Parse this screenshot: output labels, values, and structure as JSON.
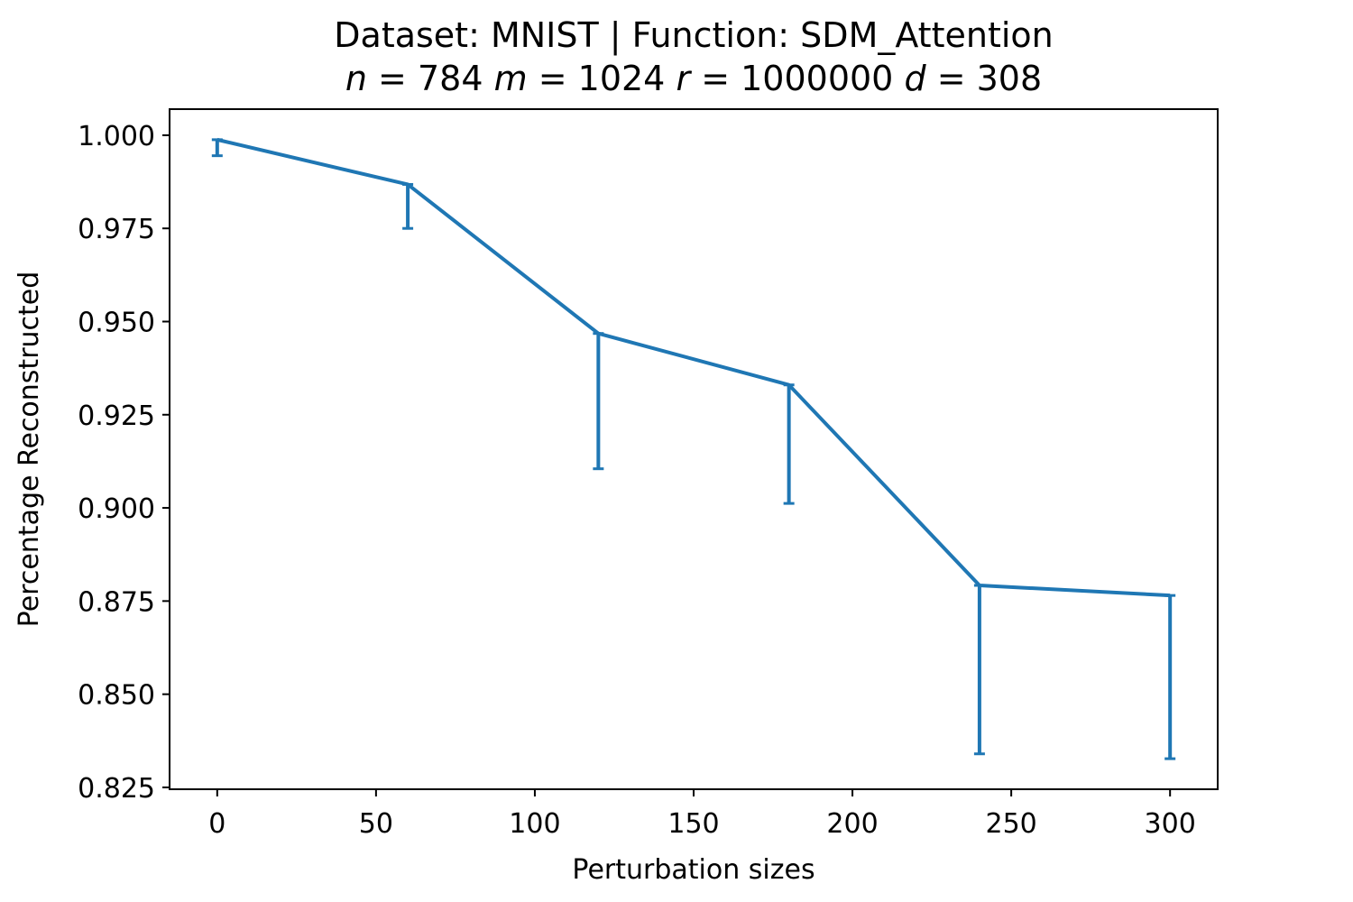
{
  "chart_data": {
    "type": "line",
    "title": "Dataset: MNIST | Function: SDM_Attention",
    "subtitle": {
      "n_label": "n",
      "n_value": "784",
      "m_label": "m",
      "m_value": "1024",
      "r_label": "r",
      "r_value": "1000000",
      "d_label": "d",
      "d_value": "308"
    },
    "xlabel": "Perturbation sizes",
    "ylabel": "Percentage Reconstructed",
    "xlim": [
      -15,
      315
    ],
    "ylim": [
      0.8245,
      1.007
    ],
    "xticks": [
      0,
      50,
      100,
      150,
      200,
      250,
      300
    ],
    "xtick_labels": [
      "0",
      "50",
      "100",
      "150",
      "200",
      "250",
      "300"
    ],
    "yticks": [
      0.825,
      0.85,
      0.875,
      0.9,
      0.925,
      0.95,
      0.975,
      1.0
    ],
    "ytick_labels": [
      "0.825",
      "0.850",
      "0.875",
      "0.900",
      "0.925",
      "0.950",
      "0.975",
      "1.000"
    ],
    "grid": false,
    "series": [
      {
        "color": "#1f77b4",
        "x": [
          0,
          60,
          120,
          180,
          240,
          300
        ],
        "y": [
          0.9988,
          0.9868,
          0.9468,
          0.933,
          0.8792,
          0.8765
        ],
        "err_lower": [
          0.9945,
          0.975,
          0.9105,
          0.9012,
          0.834,
          0.8327
        ],
        "err_upper": [
          0.9988,
          0.9868,
          0.9468,
          0.933,
          0.8792,
          0.8765
        ]
      }
    ]
  }
}
